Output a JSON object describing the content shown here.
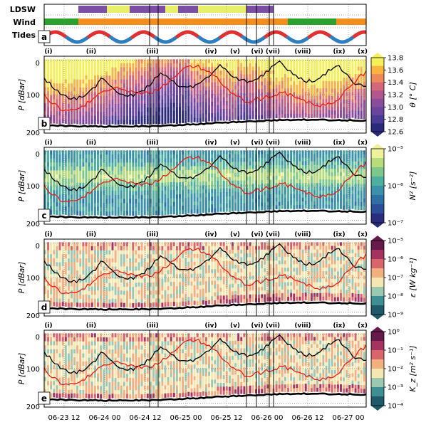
{
  "chart_data": {
    "type": "heatmap",
    "x_tick_labels": [
      "06-23 12",
      "06-24 00",
      "06-24 12",
      "06-25 00",
      "06-25 12",
      "06-26 00",
      "06-26 12",
      "06-27 00"
    ],
    "event_labels": [
      "(i)",
      "(ii)",
      "(iii)",
      "(iv)",
      "(v)",
      "(vi)",
      "(vii)",
      "(viii)",
      "(ix)",
      "(x)"
    ],
    "top_panel": {
      "panel_label": "a",
      "rows": [
        {
          "label": "LDSW",
          "colors": [
            "#7b4ea3",
            "#e6f06a"
          ]
        },
        {
          "label": "Wind",
          "colors": [
            "#2ca02c",
            "#f28e1c"
          ]
        },
        {
          "label": "Tides",
          "colors": [
            "#e03030",
            "#2f7fc0"
          ]
        }
      ]
    },
    "profile_panels": [
      {
        "panel_label": "b",
        "ylabel": "P [dBar]",
        "yticks": [
          "0",
          "100",
          "200"
        ],
        "colorbar_label": "θ [° C]",
        "colorbar_ticks": [
          "13.8",
          "13.6",
          "13.4",
          "13.2",
          "13.0",
          "12.8",
          "12.6"
        ],
        "colorscale": "thermal"
      },
      {
        "panel_label": "c",
        "ylabel": "P [dBar]",
        "yticks": [
          "0",
          "100",
          "200"
        ],
        "colorbar_label": "N² [s⁻²]",
        "colorbar_ticks": [
          "10⁻⁵",
          "10⁻⁶",
          "10⁻⁷"
        ],
        "colorscale": "haline"
      },
      {
        "panel_label": "d",
        "ylabel": "P [dBar]",
        "yticks": [
          "0",
          "100",
          "200"
        ],
        "colorbar_label": "ε [W kg⁻¹]",
        "colorbar_ticks": [
          "10⁻⁵",
          "10⁻⁶",
          "10⁻⁷",
          "10⁻⁸",
          "10⁻⁹"
        ],
        "colorscale": "curl"
      },
      {
        "panel_label": "e",
        "ylabel": "P [dBar]",
        "yticks": [
          "0",
          "100",
          "200"
        ],
        "colorbar_label": "K_z [m² s⁻¹]",
        "colorbar_ticks": [
          "10⁰",
          "10⁻¹",
          "10⁻²",
          "10⁻³",
          "10⁻⁴"
        ],
        "colorscale": "curl"
      }
    ],
    "y_range": [
      0,
      200
    ],
    "grid": true,
    "palettes": {
      "thermal": [
        "#2b2a7a",
        "#4a3b95",
        "#6a449f",
        "#8b4c9c",
        "#b0578d",
        "#d5677a",
        "#ee8a5a",
        "#f9b43f",
        "#f4f05a"
      ],
      "haline": [
        "#2a2d7c",
        "#2a4f98",
        "#2f70a4",
        "#3a91a9",
        "#4eaf9e",
        "#7cc78a",
        "#b7dc7c",
        "#eef29a"
      ],
      "curl": [
        "#1f5a6b",
        "#3f8f92",
        "#9bc8b0",
        "#f4e7b0",
        "#f3b07f",
        "#d9646b",
        "#a4345f",
        "#661a4c"
      ]
    }
  }
}
